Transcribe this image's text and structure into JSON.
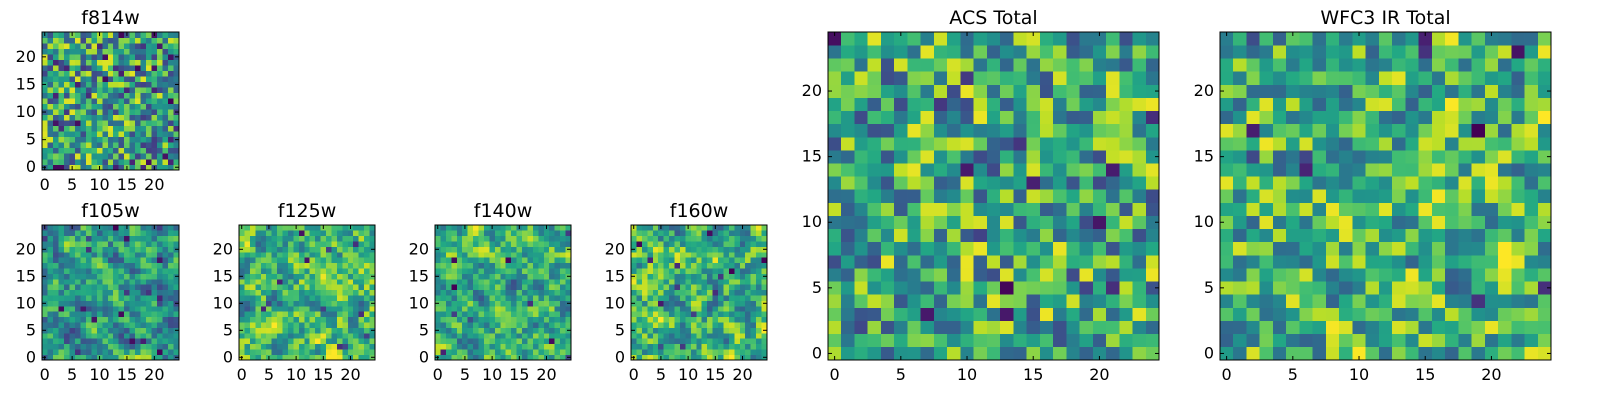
{
  "chart_data": {
    "type": "heatmap",
    "colormap": "viridis",
    "grid": false,
    "panels": [
      {
        "id": "f814w",
        "title": "f814w",
        "grid_size": [
          25,
          25
        ],
        "xlim": [
          -0.5,
          24.5
        ],
        "ylim": [
          -0.5,
          24.5
        ],
        "xticks": [
          0,
          5,
          10,
          15,
          20
        ],
        "yticks": [
          0,
          5,
          10,
          15,
          20
        ],
        "seed": 814,
        "dark_fraction": 0.08,
        "smoothness": 0.0,
        "mean_level": 0.58
      },
      {
        "id": "f105w",
        "title": "f105w",
        "grid_size": [
          25,
          25
        ],
        "xlim": [
          -0.5,
          24.5
        ],
        "ylim": [
          -0.5,
          24.5
        ],
        "xticks": [
          0,
          5,
          10,
          15,
          20
        ],
        "yticks": [
          0,
          5,
          10,
          15,
          20
        ],
        "seed": 105,
        "dark_fraction": 0.03,
        "smoothness": 0.6,
        "mean_level": 0.55
      },
      {
        "id": "f125w",
        "title": "f125w",
        "grid_size": [
          25,
          25
        ],
        "xlim": [
          -0.5,
          24.5
        ],
        "ylim": [
          -0.5,
          24.5
        ],
        "xticks": [
          0,
          5,
          10,
          15,
          20
        ],
        "yticks": [
          0,
          5,
          10,
          15,
          20
        ],
        "seed": 125,
        "dark_fraction": 0.02,
        "smoothness": 0.6,
        "mean_level": 0.65
      },
      {
        "id": "f140w",
        "title": "f140w",
        "grid_size": [
          25,
          25
        ],
        "xlim": [
          -0.5,
          24.5
        ],
        "ylim": [
          -0.5,
          24.5
        ],
        "xticks": [
          0,
          5,
          10,
          15,
          20
        ],
        "yticks": [
          0,
          5,
          10,
          15,
          20
        ],
        "seed": 140,
        "dark_fraction": 0.02,
        "smoothness": 0.6,
        "mean_level": 0.62
      },
      {
        "id": "f160w",
        "title": "f160w",
        "grid_size": [
          25,
          25
        ],
        "xlim": [
          -0.5,
          24.5
        ],
        "ylim": [
          -0.5,
          24.5
        ],
        "xticks": [
          0,
          5,
          10,
          15,
          20
        ],
        "yticks": [
          0,
          5,
          10,
          15,
          20
        ],
        "seed": 160,
        "dark_fraction": 0.02,
        "smoothness": 0.6,
        "mean_level": 0.66
      },
      {
        "id": "acs-total",
        "title": "ACS Total",
        "grid_size": [
          25,
          25
        ],
        "xlim": [
          -0.5,
          24.5
        ],
        "ylim": [
          -0.5,
          24.5
        ],
        "xticks": [
          0,
          5,
          10,
          15,
          20
        ],
        "yticks": [
          0,
          5,
          10,
          15,
          20
        ],
        "seed": 9001,
        "dark_fraction": 0.03,
        "smoothness": 0.0,
        "mean_level": 0.6
      },
      {
        "id": "wfc3-ir-total",
        "title": "WFC3 IR Total",
        "grid_size": [
          25,
          25
        ],
        "xlim": [
          -0.5,
          24.5
        ],
        "ylim": [
          -0.5,
          24.5
        ],
        "xticks": [
          0,
          5,
          10,
          15,
          20
        ],
        "yticks": [
          0,
          5,
          10,
          15,
          20
        ],
        "seed": 3003,
        "dark_fraction": 0.03,
        "smoothness": 0.3,
        "mean_level": 0.66
      }
    ]
  }
}
